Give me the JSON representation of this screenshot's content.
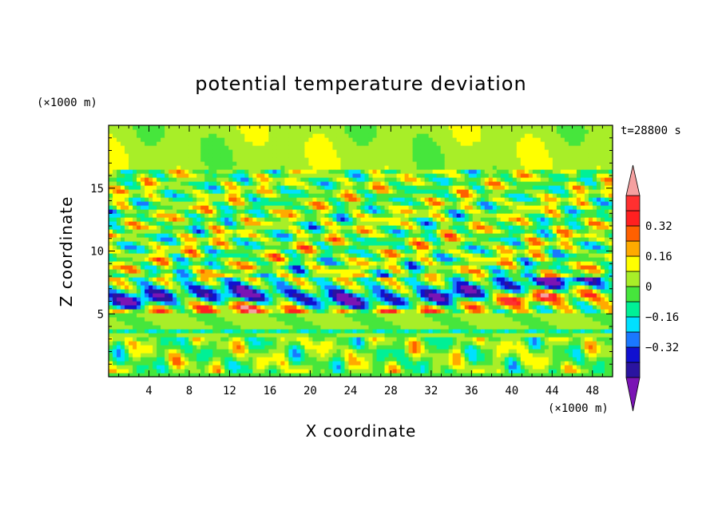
{
  "chart_data": {
    "type": "heatmap",
    "title": "potential temperature deviation",
    "xlabel": "X coordinate",
    "ylabel": "Z coordinate",
    "x_unit": "(×1000 m)",
    "y_unit": "(×1000 m)",
    "time_label": "t=28800 s",
    "x_range": [
      0,
      50
    ],
    "y_range": [
      0,
      20
    ],
    "x_ticks": [
      4,
      8,
      12,
      16,
      20,
      24,
      28,
      32,
      36,
      40,
      44,
      48
    ],
    "y_ticks": [
      5,
      10,
      15
    ],
    "colorbar": {
      "levels": [
        -0.48,
        -0.4,
        -0.32,
        -0.24,
        -0.16,
        -0.08,
        0,
        0.08,
        0.16,
        0.24,
        0.32,
        0.4,
        0.48
      ],
      "labels": [
        "0.32",
        "0.16",
        "0",
        "−0.16",
        "−0.32"
      ],
      "label_values": [
        0.32,
        0.16,
        0,
        -0.16,
        -0.32
      ],
      "colors": [
        "#7a14b4",
        "#2a14a0",
        "#1010d0",
        "#1a78ff",
        "#00e0ff",
        "#00f096",
        "#46e63c",
        "#a8ee28",
        "#ffff00",
        "#ffaa00",
        "#ff6000",
        "#ff2020",
        "#ff3030",
        "#f5a0a0"
      ],
      "extend": "both"
    },
    "field_features": {
      "stable_top_value": 0.04,
      "strong_band_z": [
        5,
        8
      ],
      "wave_band_z": [
        8,
        17
      ]
    }
  }
}
